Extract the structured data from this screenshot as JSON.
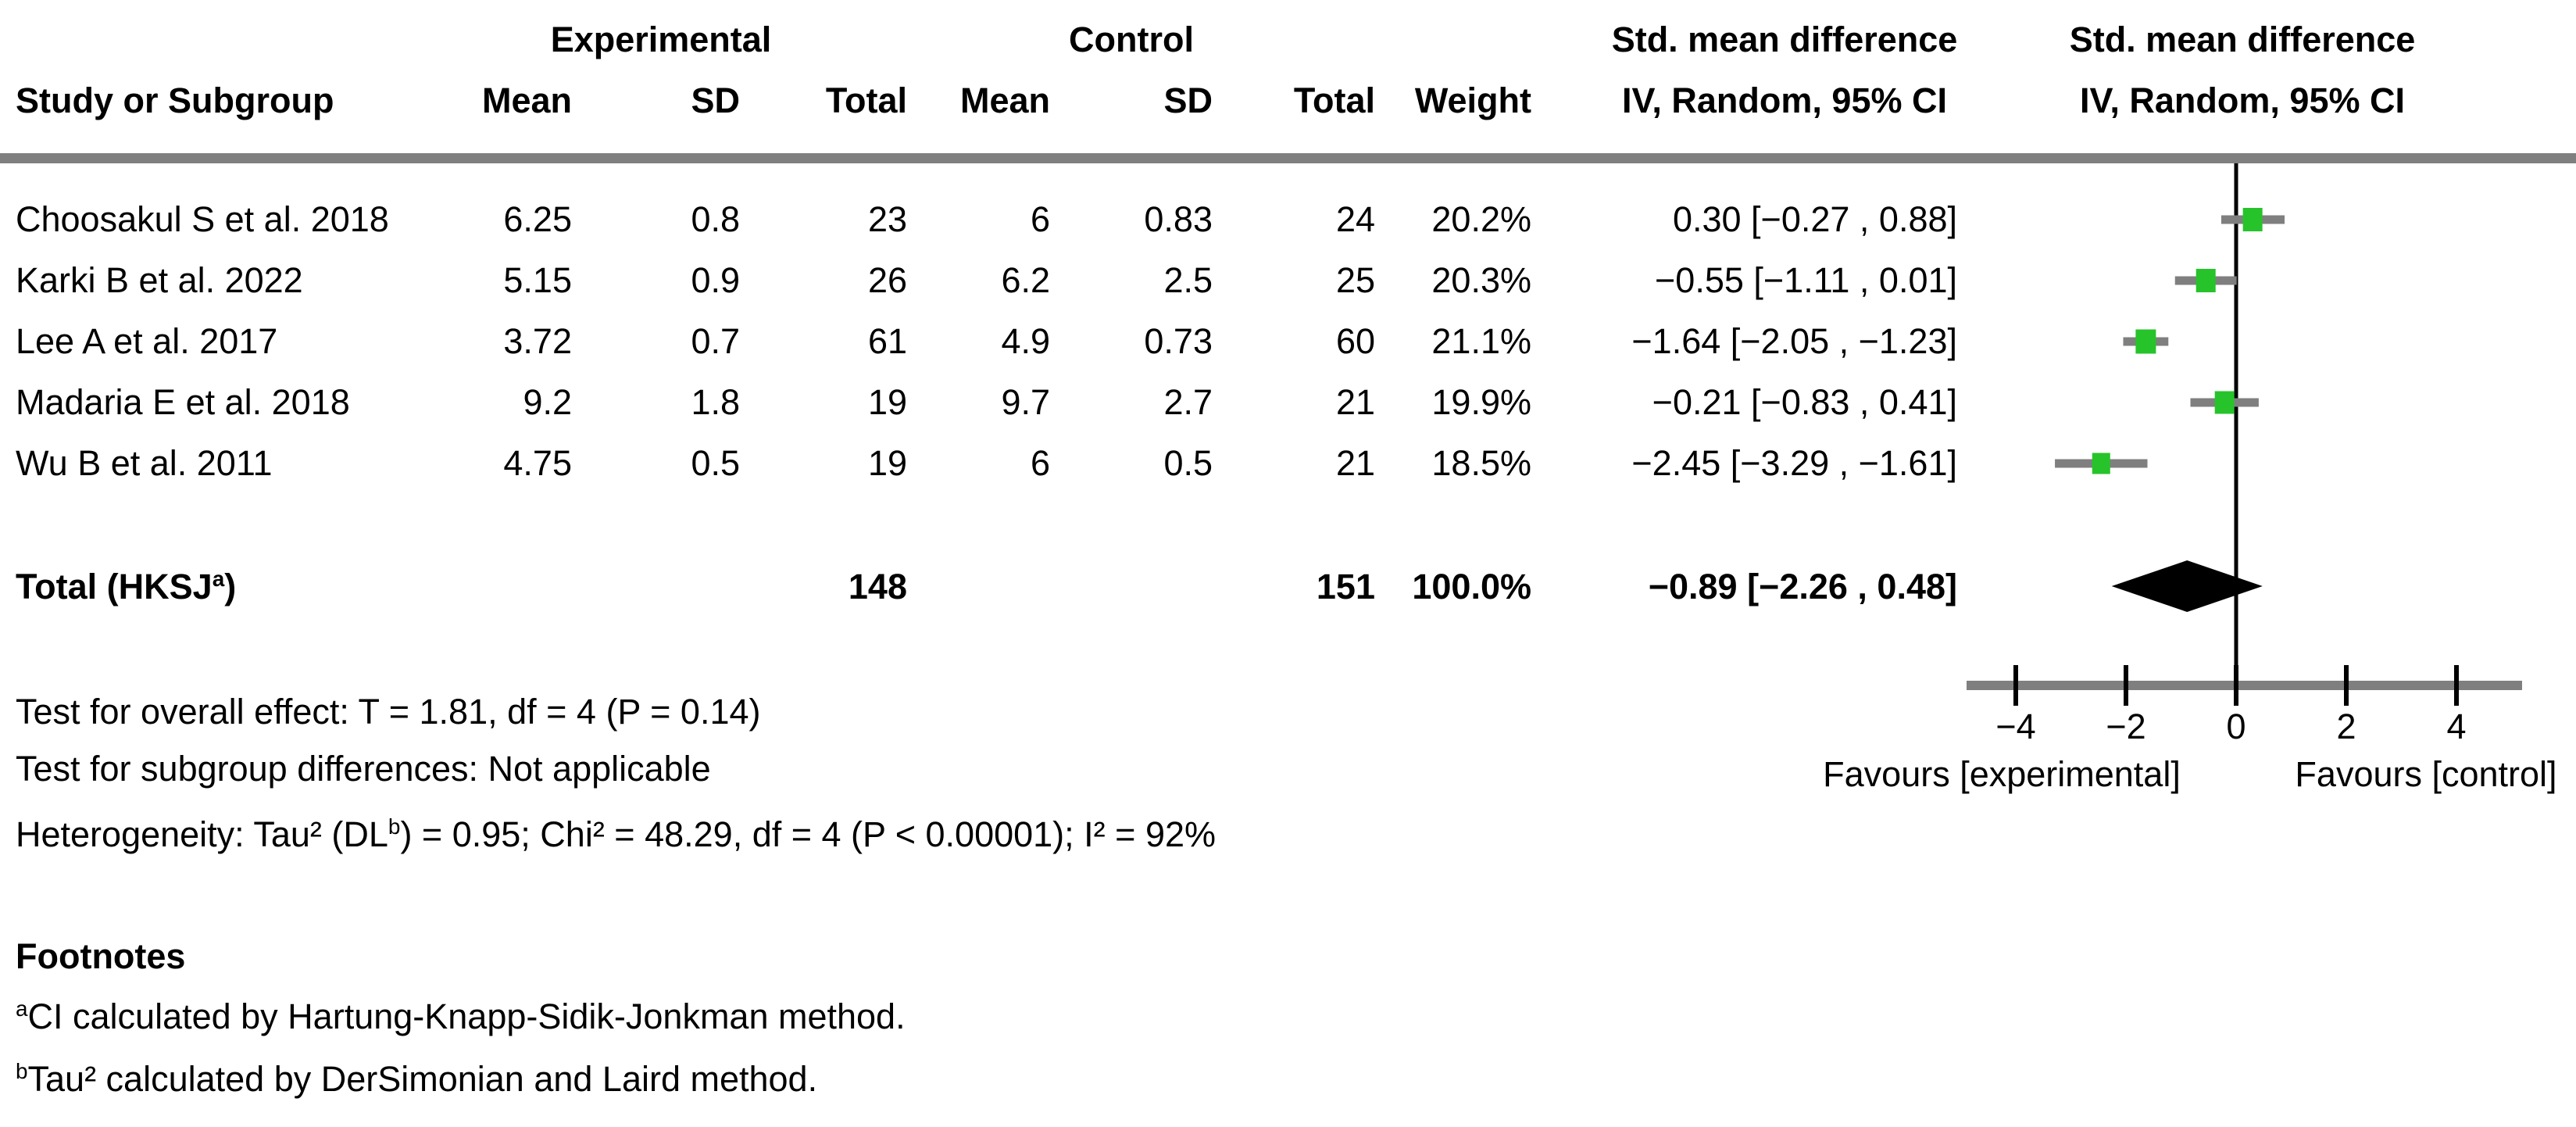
{
  "header": {
    "experimental": "Experimental",
    "control": "Control",
    "study": "Study or Subgroup",
    "mean": "Mean",
    "sd": "SD",
    "total": "Total",
    "weight": "Weight",
    "smd_line1": "Std. mean difference",
    "smd_line2": "IV, Random, 95% CI"
  },
  "rows": [
    {
      "study": "Choosakul S et al. 2018",
      "mean_e": "6.25",
      "sd_e": "0.8",
      "total_e": "23",
      "mean_c": "6",
      "sd_c": "0.83",
      "total_c": "24",
      "weight": "20.2%",
      "ci": "0.30 [−0.27 , 0.88]"
    },
    {
      "study": "Karki B et al. 2022",
      "mean_e": "5.15",
      "sd_e": "0.9",
      "total_e": "26",
      "mean_c": "6.2",
      "sd_c": "2.5",
      "total_c": "25",
      "weight": "20.3%",
      "ci": "−0.55 [−1.11 , 0.01]"
    },
    {
      "study": "Lee A et al. 2017",
      "mean_e": "3.72",
      "sd_e": "0.7",
      "total_e": "61",
      "mean_c": "4.9",
      "sd_c": "0.73",
      "total_c": "60",
      "weight": "21.1%",
      "ci": "−1.64 [−2.05 , −1.23]"
    },
    {
      "study": "Madaria E et al. 2018",
      "mean_e": "9.2",
      "sd_e": "1.8",
      "total_e": "19",
      "mean_c": "9.7",
      "sd_c": "2.7",
      "total_c": "21",
      "weight": "19.9%",
      "ci": "−0.21 [−0.83 , 0.41]"
    },
    {
      "study": "Wu B et al. 2011",
      "mean_e": "4.75",
      "sd_e": "0.5",
      "total_e": "19",
      "mean_c": "6",
      "sd_c": "0.5",
      "total_c": "21",
      "weight": "18.5%",
      "ci": "−2.45 [−3.29 , −1.61]"
    }
  ],
  "total_row": {
    "label_pre": "Total (HKSJ",
    "label_sup": "a",
    "label_post": ")",
    "total_e": "148",
    "total_c": "151",
    "weight": "100.0%",
    "ci": "−0.89 [−2.26 , 0.48]"
  },
  "stats": {
    "overall": "Test for overall effect: T = 1.81, df = 4 (P = 0.14)",
    "subgroup": "Test for subgroup differences: Not applicable",
    "het_pre": "Heterogeneity: Tau² (DL",
    "het_sup": "b",
    "het_post": ") = 0.95; Chi² = 48.29, df = 4 (P < 0.00001); I² = 92%"
  },
  "footnotes": {
    "title": "Footnotes",
    "a_sup": "a",
    "a_text": "CI calculated by Hartung-Knapp-Sidik-Jonkman method.",
    "b_sup": "b",
    "b_text": "Tau² calculated by DerSimonian and Laird method."
  },
  "axis": {
    "tick_labels": [
      "−4",
      "−2",
      "0",
      "2",
      "4"
    ],
    "favours_left": "Favours [experimental]",
    "favours_right": "Favours [control]"
  },
  "colors": {
    "marker_green": "#27c32b",
    "gray": "#7f7f7f",
    "black": "#000000",
    "background": "#ffffff"
  },
  "chart_data": {
    "type": "forest",
    "effect_measure": "Std. mean difference (IV, Random, 95% CI)",
    "x_ticks": [
      -4,
      -2,
      0,
      2,
      4
    ],
    "x_range": [
      -4.9,
      5.2
    ],
    "zero_line": 0,
    "legend_left": "Favours [experimental]",
    "legend_right": "Favours [control]",
    "studies": [
      {
        "name": "Choosakul S et al. 2018",
        "estimate": 0.3,
        "ci_lower": -0.27,
        "ci_upper": 0.88,
        "weight_pct": 20.2,
        "mean_e": 6.25,
        "sd_e": 0.8,
        "n_e": 23,
        "mean_c": 6,
        "sd_c": 0.83,
        "n_c": 24
      },
      {
        "name": "Karki B et al. 2022",
        "estimate": -0.55,
        "ci_lower": -1.11,
        "ci_upper": 0.01,
        "weight_pct": 20.3,
        "mean_e": 5.15,
        "sd_e": 0.9,
        "n_e": 26,
        "mean_c": 6.2,
        "sd_c": 2.5,
        "n_c": 25
      },
      {
        "name": "Lee A et al. 2017",
        "estimate": -1.64,
        "ci_lower": -2.05,
        "ci_upper": -1.23,
        "weight_pct": 21.1,
        "mean_e": 3.72,
        "sd_e": 0.7,
        "n_e": 61,
        "mean_c": 4.9,
        "sd_c": 0.73,
        "n_c": 60
      },
      {
        "name": "Madaria E et al. 2018",
        "estimate": -0.21,
        "ci_lower": -0.83,
        "ci_upper": 0.41,
        "weight_pct": 19.9,
        "mean_e": 9.2,
        "sd_e": 1.8,
        "n_e": 19,
        "mean_c": 9.7,
        "sd_c": 2.7,
        "n_c": 21
      },
      {
        "name": "Wu B et al. 2011",
        "estimate": -2.45,
        "ci_lower": -3.29,
        "ci_upper": -1.61,
        "weight_pct": 18.5,
        "mean_e": 4.75,
        "sd_e": 0.5,
        "n_e": 19,
        "mean_c": 6,
        "sd_c": 0.5,
        "n_c": 21
      }
    ],
    "total": {
      "name": "Total (HKSJ)",
      "estimate": -0.89,
      "ci_lower": -2.26,
      "ci_upper": 0.48,
      "weight_pct": 100.0,
      "n_e": 148,
      "n_c": 151
    }
  }
}
